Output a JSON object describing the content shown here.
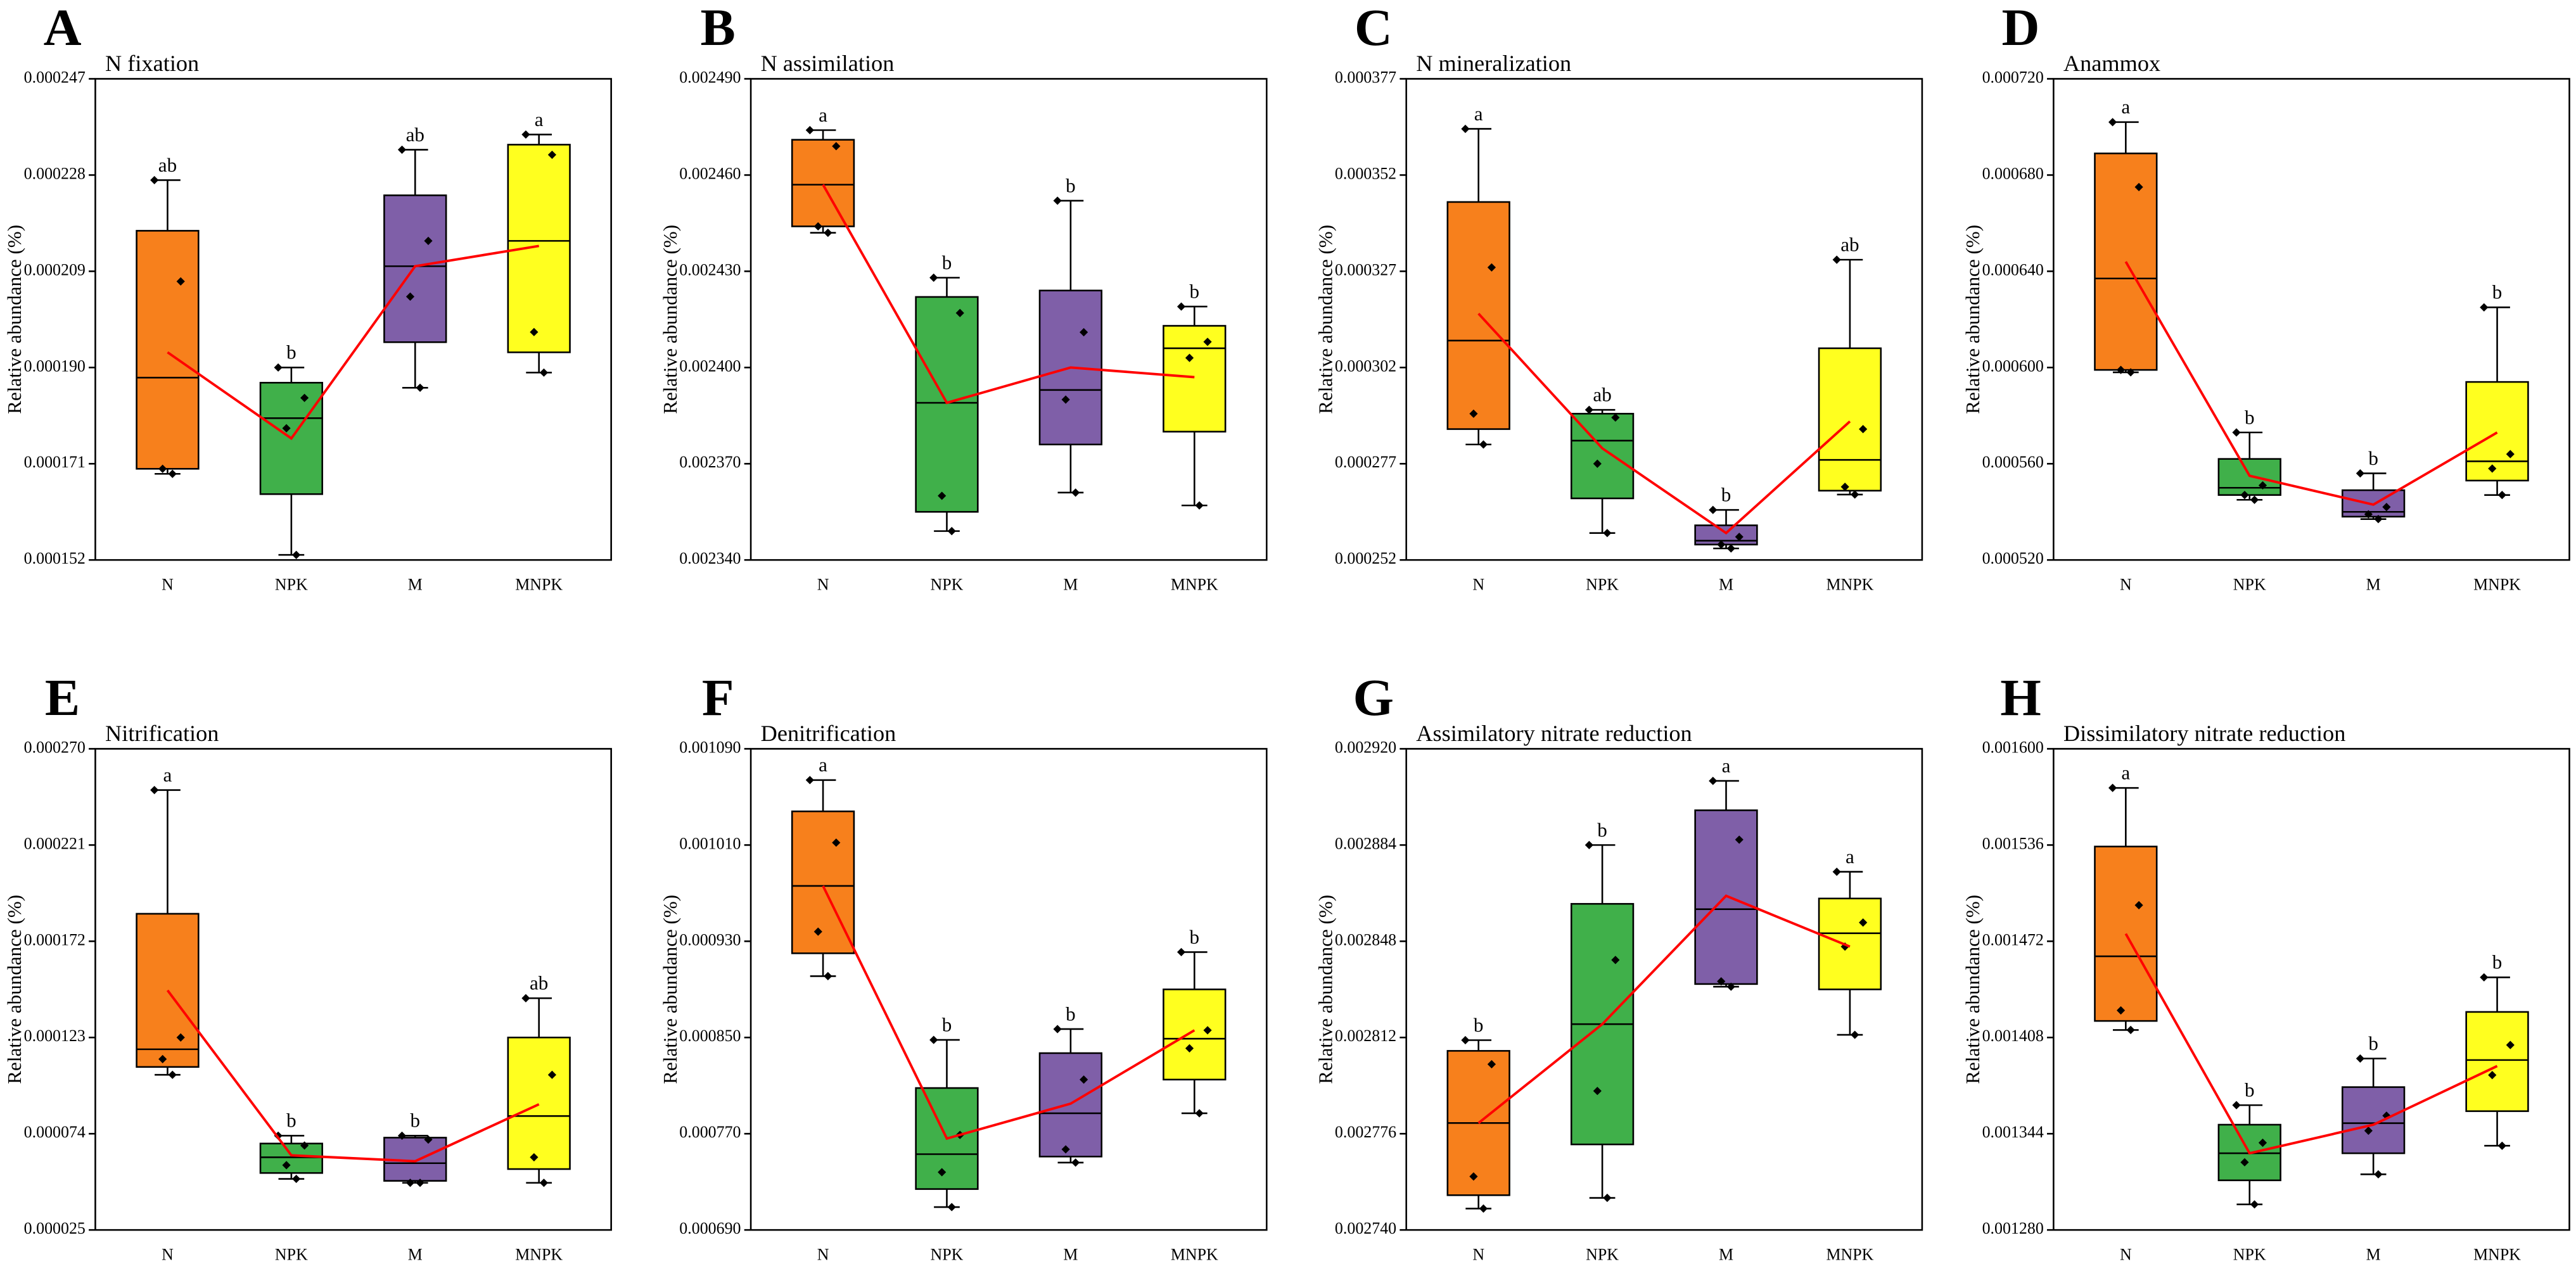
{
  "chart_data": [
    {
      "type": "box",
      "panel": "A",
      "title": "N fixation",
      "y_label": "Relative abundance (%)",
      "categories": [
        "N",
        "NPK",
        "M",
        "MNPK"
      ],
      "colors": [
        "#f7801c",
        "#40b04a",
        "#7f5fa8",
        "#ffff1f"
      ],
      "mean_color": "#ff0000",
      "ylim": [
        0.000152,
        0.000247
      ],
      "yticks": [
        0.000152,
        0.000171,
        {
          "value": 0.00019,
          "label": "0.000190"
        },
        0.000209,
        0.000228,
        0.000247
      ],
      "boxes": [
        {
          "min": 0.000169,
          "q1": 0.00017,
          "median": 0.000188,
          "q3": 0.000217,
          "max": 0.000227
        },
        {
          "min": 0.000153,
          "q1": 0.000165,
          "median": 0.00018,
          "q3": 0.000187,
          "max": 0.00019
        },
        {
          "min": 0.000186,
          "q1": 0.000195,
          "median": 0.00021,
          "q3": 0.000224,
          "max": 0.000233
        },
        {
          "min": 0.000189,
          "q1": 0.000193,
          "median": 0.000215,
          "q3": 0.000234,
          "max": 0.000236
        }
      ],
      "points": [
        [
          0.000227,
          0.000207,
          0.00017,
          0.000169
        ],
        [
          0.00019,
          0.000184,
          0.000178,
          0.000153
        ],
        [
          0.000233,
          0.000215,
          0.000204,
          0.000186
        ],
        [
          0.000236,
          0.000232,
          0.000197,
          0.000189
        ]
      ],
      "means": [
        0.000193,
        0.000176,
        0.00021,
        0.000214
      ],
      "letters": [
        "ab",
        "b",
        "ab",
        "a"
      ]
    },
    {
      "type": "box",
      "panel": "B",
      "title": "N assimilation",
      "y_label": "Relative abundance (%)",
      "categories": [
        "N",
        "NPK",
        "M",
        "MNPK"
      ],
      "colors": [
        "#f7801c",
        "#40b04a",
        "#7f5fa8",
        "#ffff1f"
      ],
      "mean_color": "#ff0000",
      "ylim": [
        0.00234,
        0.00249
      ],
      "yticks": [
        {
          "value": 0.00234,
          "label": "0.002340"
        },
        {
          "value": 0.00237,
          "label": "0.002370"
        },
        {
          "value": 0.0024,
          "label": "0.002400"
        },
        {
          "value": 0.00243,
          "label": "0.002430"
        },
        {
          "value": 0.00246,
          "label": "0.002460"
        },
        {
          "value": 0.00249,
          "label": "0.002490"
        }
      ],
      "boxes": [
        {
          "min": 0.002442,
          "q1": 0.002444,
          "median": 0.002457,
          "q3": 0.002471,
          "max": 0.002474
        },
        {
          "min": 0.002349,
          "q1": 0.002355,
          "median": 0.002389,
          "q3": 0.002422,
          "max": 0.002428
        },
        {
          "min": 0.002361,
          "q1": 0.002376,
          "median": 0.002393,
          "q3": 0.002424,
          "max": 0.002452
        },
        {
          "min": 0.002357,
          "q1": 0.00238,
          "median": 0.002406,
          "q3": 0.002413,
          "max": 0.002419
        }
      ],
      "points": [
        [
          0.002474,
          0.002469,
          0.002444,
          0.002442
        ],
        [
          0.002428,
          0.002417,
          0.00236,
          0.002349
        ],
        [
          0.002452,
          0.002411,
          0.00239,
          0.002361
        ],
        [
          0.002419,
          0.002408,
          0.002403,
          0.002357
        ]
      ],
      "means": [
        0.002457,
        0.002389,
        0.0024,
        0.002397
      ],
      "letters": [
        "a",
        "b",
        "b",
        "b"
      ]
    },
    {
      "type": "box",
      "panel": "C",
      "title": "N mineralization",
      "y_label": "Relative abundance (%)",
      "categories": [
        "N",
        "NPK",
        "M",
        "MNPK"
      ],
      "colors": [
        "#f7801c",
        "#40b04a",
        "#7f5fa8",
        "#ffff1f"
      ],
      "mean_color": "#ff0000",
      "ylim": [
        0.000252,
        0.000377
      ],
      "yticks": [
        0.000252,
        0.000277,
        0.000302,
        0.000327,
        0.000352,
        0.000377
      ],
      "boxes": [
        {
          "min": 0.000282,
          "q1": 0.000286,
          "median": 0.000309,
          "q3": 0.000345,
          "max": 0.000364
        },
        {
          "min": 0.000259,
          "q1": 0.000268,
          "median": 0.000283,
          "q3": 0.00029,
          "max": 0.000291
        },
        {
          "min": 0.000255,
          "q1": 0.000256,
          "median": 0.000257,
          "q3": 0.000261,
          "max": 0.000265
        },
        {
          "min": 0.000269,
          "q1": 0.00027,
          "median": 0.000278,
          "q3": 0.000307,
          "max": 0.00033
        }
      ],
      "points": [
        [
          0.000364,
          0.000328,
          0.00029,
          0.000282
        ],
        [
          0.000291,
          0.000289,
          0.000277,
          0.000259
        ],
        [
          0.000265,
          0.000258,
          0.000256,
          0.000255
        ],
        [
          0.00033,
          0.000286,
          0.000271,
          0.000269
        ]
      ],
      "means": [
        0.000316,
        0.000281,
        0.000259,
        0.000288
      ],
      "letters": [
        "a",
        "ab",
        "b",
        "ab"
      ]
    },
    {
      "type": "box",
      "panel": "D",
      "title": "Anammox",
      "y_label": "Relative abundance (%)",
      "categories": [
        "N",
        "NPK",
        "M",
        "MNPK"
      ],
      "colors": [
        "#f7801c",
        "#40b04a",
        "#7f5fa8",
        "#ffff1f"
      ],
      "mean_color": "#ff0000",
      "ylim": [
        0.00052,
        0.00072
      ],
      "yticks": [
        {
          "value": 0.00052,
          "label": "0.000520"
        },
        {
          "value": 0.00056,
          "label": "0.000560"
        },
        {
          "value": 0.0006,
          "label": "0.000600"
        },
        {
          "value": 0.00064,
          "label": "0.000640"
        },
        {
          "value": 0.00068,
          "label": "0.000680"
        },
        {
          "value": 0.00072,
          "label": "0.000720"
        }
      ],
      "boxes": [
        {
          "min": 0.000598,
          "q1": 0.000599,
          "median": 0.000637,
          "q3": 0.000689,
          "max": 0.000702
        },
        {
          "min": 0.000545,
          "q1": 0.000547,
          "median": 0.00055,
          "q3": 0.000562,
          "max": 0.000573
        },
        {
          "min": 0.000537,
          "q1": 0.000538,
          "median": 0.00054,
          "q3": 0.000549,
          "max": 0.000556
        },
        {
          "min": 0.000547,
          "q1": 0.000553,
          "median": 0.000561,
          "q3": 0.000594,
          "max": 0.000625
        }
      ],
      "points": [
        [
          0.000702,
          0.000675,
          0.000599,
          0.000598
        ],
        [
          0.000573,
          0.000551,
          0.000547,
          0.000545
        ],
        [
          0.000556,
          0.000542,
          0.000539,
          0.000537
        ],
        [
          0.000625,
          0.000564,
          0.000558,
          0.000547
        ]
      ],
      "means": [
        0.000644,
        0.000555,
        0.000543,
        0.000573
      ],
      "letters": [
        "a",
        "b",
        "b",
        "b"
      ]
    },
    {
      "type": "box",
      "panel": "E",
      "title": "Nitrification",
      "y_label": "Relative abundance (%)",
      "categories": [
        "N",
        "NPK",
        "M",
        "MNPK"
      ],
      "colors": [
        "#f7801c",
        "#40b04a",
        "#7f5fa8",
        "#ffff1f"
      ],
      "mean_color": "#ff0000",
      "ylim": [
        2.5e-05,
        0.00027
      ],
      "yticks": [
        2.5e-05,
        7.4e-05,
        0.000123,
        0.000172,
        0.000221,
        {
          "value": 0.00027,
          "label": "0.000270"
        }
      ],
      "boxes": [
        {
          "min": 0.000104,
          "q1": 0.000108,
          "median": 0.000117,
          "q3": 0.000186,
          "max": 0.000249
        },
        {
          "min": 5.1e-05,
          "q1": 5.4e-05,
          "median": 6.2e-05,
          "q3": 6.9e-05,
          "max": 7.3e-05
        },
        {
          "min": 4.9e-05,
          "q1": 5e-05,
          "median": 5.9e-05,
          "q3": 7.2e-05,
          "max": 7.3e-05
        },
        {
          "min": 4.9e-05,
          "q1": 5.6e-05,
          "median": 8.3e-05,
          "q3": 0.000123,
          "max": 0.000143
        }
      ],
      "points": [
        [
          0.000249,
          0.000123,
          0.000112,
          0.000104
        ],
        [
          7.3e-05,
          6.8e-05,
          5.8e-05,
          5.1e-05
        ],
        [
          7.3e-05,
          7.1e-05,
          4.9e-05,
          4.9e-05
        ],
        [
          0.000143,
          0.000104,
          6.2e-05,
          4.9e-05
        ]
      ],
      "means": [
        0.000147,
        6.3e-05,
        6e-05,
        8.9e-05
      ],
      "letters": [
        "a",
        "b",
        "b",
        "ab"
      ]
    },
    {
      "type": "box",
      "panel": "F",
      "title": "Denitrification",
      "y_label": "Relative abundance (%)",
      "categories": [
        "N",
        "NPK",
        "M",
        "MNPK"
      ],
      "colors": [
        "#f7801c",
        "#40b04a",
        "#7f5fa8",
        "#ffff1f"
      ],
      "mean_color": "#ff0000",
      "ylim": [
        0.00069,
        0.00109
      ],
      "yticks": [
        {
          "value": 0.00069,
          "label": "0.000690"
        },
        {
          "value": 0.00077,
          "label": "0.000770"
        },
        {
          "value": 0.00085,
          "label": "0.000850"
        },
        {
          "value": 0.00093,
          "label": "0.000930"
        },
        {
          "value": 0.00101,
          "label": "0.001010"
        },
        {
          "value": 0.00109,
          "label": "0.001090"
        }
      ],
      "boxes": [
        {
          "min": 0.000901,
          "q1": 0.00092,
          "median": 0.000976,
          "q3": 0.001038,
          "max": 0.001064
        },
        {
          "min": 0.000709,
          "q1": 0.000724,
          "median": 0.000753,
          "q3": 0.000808,
          "max": 0.000848
        },
        {
          "min": 0.000746,
          "q1": 0.000751,
          "median": 0.000787,
          "q3": 0.000837,
          "max": 0.000857
        },
        {
          "min": 0.000787,
          "q1": 0.000815,
          "median": 0.000849,
          "q3": 0.00089,
          "max": 0.000921
        }
      ],
      "points": [
        [
          0.001064,
          0.001012,
          0.000938,
          0.000901
        ],
        [
          0.000848,
          0.000769,
          0.000738,
          0.000709
        ],
        [
          0.000857,
          0.000815,
          0.000757,
          0.000746
        ],
        [
          0.000921,
          0.000856,
          0.000841,
          0.000787
        ]
      ],
      "means": [
        0.000976,
        0.000766,
        0.000795,
        0.000856
      ],
      "letters": [
        "a",
        "b",
        "b",
        "b"
      ]
    },
    {
      "type": "box",
      "panel": "G",
      "title": "Assimilatory nitrate reduction",
      "y_label": "Relative abundance (%)",
      "categories": [
        "N",
        "NPK",
        "M",
        "MNPK"
      ],
      "colors": [
        "#f7801c",
        "#40b04a",
        "#7f5fa8",
        "#ffff1f"
      ],
      "mean_color": "#ff0000",
      "ylim": [
        0.00274,
        0.00292
      ],
      "yticks": [
        {
          "value": 0.00274,
          "label": "0.002740"
        },
        0.002776,
        0.002812,
        0.002848,
        0.002884,
        {
          "value": 0.00292,
          "label": "0.002920"
        }
      ],
      "boxes": [
        {
          "min": 0.002748,
          "q1": 0.002753,
          "median": 0.00278,
          "q3": 0.002807,
          "max": 0.002811
        },
        {
          "min": 0.002752,
          "q1": 0.002772,
          "median": 0.002817,
          "q3": 0.002862,
          "max": 0.002884
        },
        {
          "min": 0.002831,
          "q1": 0.002832,
          "median": 0.00286,
          "q3": 0.002897,
          "max": 0.002908
        },
        {
          "min": 0.002813,
          "q1": 0.00283,
          "median": 0.002851,
          "q3": 0.002864,
          "max": 0.002874
        }
      ],
      "points": [
        [
          0.002811,
          0.002802,
          0.00276,
          0.002748
        ],
        [
          0.002884,
          0.002841,
          0.002792,
          0.002752
        ],
        [
          0.002908,
          0.002886,
          0.002833,
          0.002831
        ],
        [
          0.002874,
          0.002855,
          0.002846,
          0.002813
        ]
      ],
      "means": [
        0.00278,
        0.002817,
        0.002865,
        0.002846
      ],
      "letters": [
        "b",
        "b",
        "a",
        "a"
      ]
    },
    {
      "type": "box",
      "panel": "H",
      "title": "Dissimilatory nitrate reduction",
      "y_label": "Relative abundance (%)",
      "categories": [
        "N",
        "NPK",
        "M",
        "MNPK"
      ],
      "colors": [
        "#f7801c",
        "#40b04a",
        "#7f5fa8",
        "#ffff1f"
      ],
      "mean_color": "#ff0000",
      "ylim": [
        0.00128,
        0.0016
      ],
      "yticks": [
        {
          "value": 0.00128,
          "label": "0.001280"
        },
        0.001344,
        0.001408,
        0.001472,
        0.001536,
        {
          "value": 0.0016,
          "label": "0.001600"
        }
      ],
      "boxes": [
        {
          "min": 0.001413,
          "q1": 0.001419,
          "median": 0.001462,
          "q3": 0.001535,
          "max": 0.001574
        },
        {
          "min": 0.001297,
          "q1": 0.001313,
          "median": 0.001331,
          "q3": 0.00135,
          "max": 0.001363
        },
        {
          "min": 0.001317,
          "q1": 0.001331,
          "median": 0.001351,
          "q3": 0.001375,
          "max": 0.001394
        },
        {
          "min": 0.001336,
          "q1": 0.001359,
          "median": 0.001393,
          "q3": 0.001425,
          "max": 0.001448
        }
      ],
      "points": [
        [
          0.001574,
          0.001496,
          0.001426,
          0.001413
        ],
        [
          0.001363,
          0.001338,
          0.001325,
          0.001297
        ],
        [
          0.001394,
          0.001356,
          0.001346,
          0.001317
        ],
        [
          0.001448,
          0.001403,
          0.001383,
          0.001336
        ]
      ],
      "means": [
        0.001477,
        0.001331,
        0.00135,
        0.001389
      ],
      "letters": [
        "a",
        "b",
        "b",
        "b"
      ]
    }
  ]
}
